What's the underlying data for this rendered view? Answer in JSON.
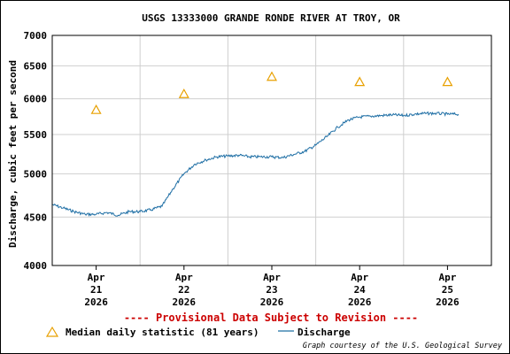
{
  "chart_data": {
    "type": "line",
    "title": "USGS 13333000 GRANDE RONDE RIVER AT TROY, OR",
    "ylabel": "Discharge, cubic feet per second",
    "xlabel": "",
    "ylim": [
      4000,
      7000
    ],
    "y_scale": "log",
    "y_ticks": [
      "4000",
      "4500",
      "5000",
      "5500",
      "6000",
      "6500",
      "7000"
    ],
    "y_tick_values": [
      4000,
      4500,
      5000,
      5500,
      6000,
      6500,
      7000
    ],
    "x_start": "2026-04-20T12:00",
    "x_end": "2026-04-25T12:00",
    "x_ticks": [
      {
        "month": "Apr",
        "day": "21",
        "year": "2026",
        "x": "2026-04-21T00:00"
      },
      {
        "month": "Apr",
        "day": "22",
        "year": "2026",
        "x": "2026-04-22T00:00"
      },
      {
        "month": "Apr",
        "day": "23",
        "year": "2026",
        "x": "2026-04-23T00:00"
      },
      {
        "month": "Apr",
        "day": "24",
        "year": "2026",
        "x": "2026-04-24T00:00"
      },
      {
        "month": "Apr",
        "day": "25",
        "year": "2026",
        "x": "2026-04-25T00:00"
      }
    ],
    "grid": true,
    "series": [
      {
        "name": "Discharge",
        "color": "#1f6fa5",
        "style": "line",
        "x": [
          "2026-04-20T12:00",
          "2026-04-20T15:00",
          "2026-04-20T18:00",
          "2026-04-20T21:00",
          "2026-04-21T00:00",
          "2026-04-21T03:00",
          "2026-04-21T06:00",
          "2026-04-21T09:00",
          "2026-04-21T12:00",
          "2026-04-21T15:00",
          "2026-04-21T18:00",
          "2026-04-21T21:00",
          "2026-04-22T00:00",
          "2026-04-22T03:00",
          "2026-04-22T06:00",
          "2026-04-22T09:00",
          "2026-04-22T12:00",
          "2026-04-22T15:00",
          "2026-04-22T18:00",
          "2026-04-22T21:00",
          "2026-04-23T00:00",
          "2026-04-23T03:00",
          "2026-04-23T06:00",
          "2026-04-23T09:00",
          "2026-04-23T12:00",
          "2026-04-23T15:00",
          "2026-04-23T18:00",
          "2026-04-23T21:00",
          "2026-04-24T00:00",
          "2026-04-24T03:00",
          "2026-04-24T06:00",
          "2026-04-24T09:00",
          "2026-04-24T12:00",
          "2026-04-24T15:00",
          "2026-04-24T18:00",
          "2026-04-24T21:00",
          "2026-04-25T00:00",
          "2026-04-25T03:00"
        ],
        "values": [
          4640,
          4600,
          4560,
          4530,
          4530,
          4550,
          4520,
          4560,
          4560,
          4580,
          4620,
          4820,
          5000,
          5120,
          5170,
          5210,
          5220,
          5230,
          5210,
          5210,
          5210,
          5200,
          5240,
          5280,
          5360,
          5470,
          5600,
          5700,
          5740,
          5750,
          5760,
          5770,
          5760,
          5780,
          5790,
          5790,
          5780,
          5780
        ]
      },
      {
        "name": "Median daily statistic (81 years)",
        "color": "#e8a000",
        "style": "triangle",
        "x": [
          "2026-04-21T00:00",
          "2026-04-22T00:00",
          "2026-04-23T00:00",
          "2026-04-24T00:00",
          "2026-04-25T00:00"
        ],
        "values": [
          5840,
          6070,
          6330,
          6250,
          6250
        ]
      }
    ]
  },
  "note": "---- Provisional Data Subject to Revision ----",
  "legend": {
    "median_label": "Median daily statistic (81 years)",
    "discharge_label": "Discharge"
  },
  "credit": "Graph courtesy of the U.S. Geological Survey"
}
